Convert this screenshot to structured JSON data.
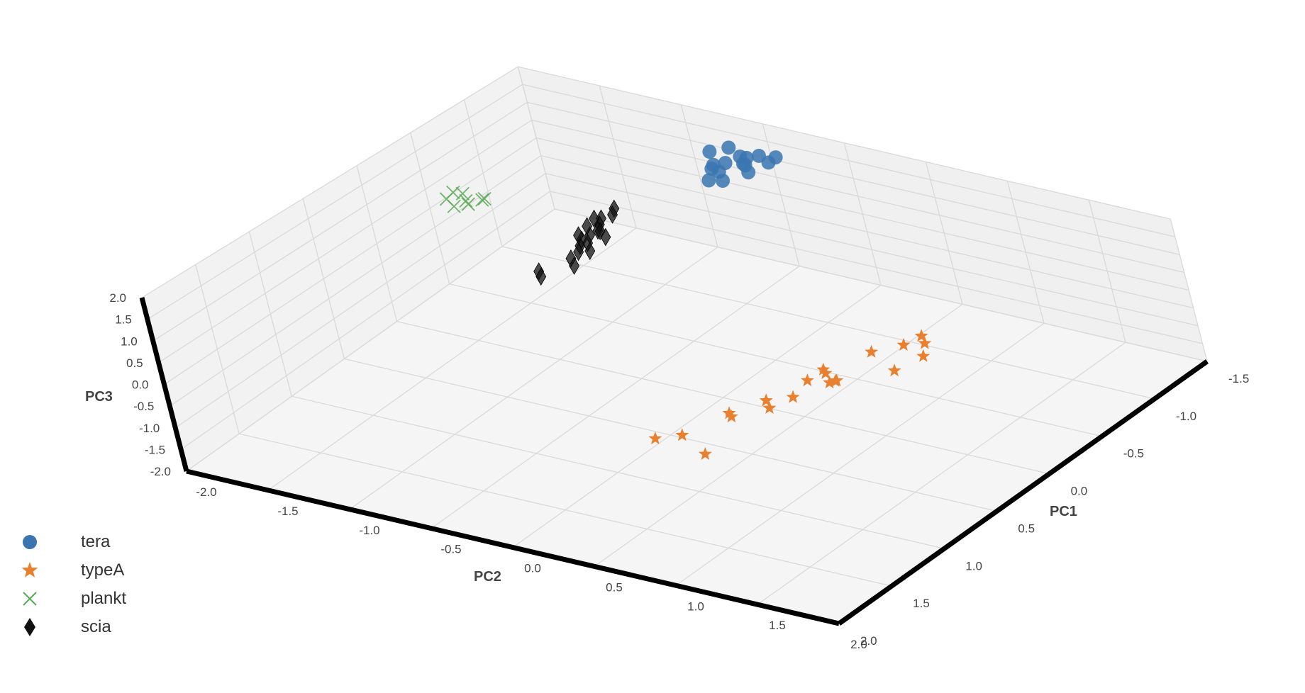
{
  "chart_data": {
    "type": "scatter",
    "projection": "3d",
    "grid": true,
    "legend_position": "bottom-left",
    "axes": {
      "x": {
        "label": "PC1",
        "range": [
          -1.5,
          2.0
        ],
        "ticks": [
          "-1.5",
          "-1.0",
          "-0.5",
          "0.0",
          "0.5",
          "1.0",
          "1.5",
          "2.0"
        ]
      },
      "y": {
        "label": "PC2",
        "range": [
          -2.0,
          2.0
        ],
        "ticks": [
          "-2.0",
          "-1.5",
          "-1.0",
          "-0.5",
          "0.0",
          "0.5",
          "1.0",
          "1.5",
          "2.0"
        ]
      },
      "z": {
        "label": "PC3",
        "range": [
          -2.0,
          2.0
        ],
        "ticks": [
          "-2.0",
          "-1.5",
          "-1.0",
          "-0.5",
          "0.0",
          "0.5",
          "1.0",
          "1.5",
          "2.0"
        ]
      }
    },
    "series": [
      {
        "name": "tera",
        "marker": "circle",
        "color": "#3a75b0",
        "points": [
          [
            -1.3,
            -0.6,
            1.6
          ],
          [
            -1.25,
            -0.5,
            1.55
          ],
          [
            -1.2,
            -0.45,
            1.5
          ],
          [
            -1.18,
            -0.55,
            1.45
          ],
          [
            -1.15,
            -0.4,
            1.6
          ],
          [
            -1.1,
            -0.35,
            1.55
          ],
          [
            -1.05,
            -0.5,
            1.5
          ],
          [
            -1.0,
            -0.45,
            1.4
          ],
          [
            -1.22,
            -0.3,
            1.65
          ],
          [
            -1.12,
            -0.6,
            1.35
          ],
          [
            -1.28,
            -0.4,
            1.62
          ],
          [
            -1.08,
            -0.55,
            1.58
          ],
          [
            -1.35,
            -0.35,
            1.5
          ],
          [
            -0.95,
            -0.5,
            1.45
          ],
          [
            -1.2,
            -0.65,
            1.62
          ],
          [
            -1.3,
            -0.5,
            1.42
          ]
        ]
      },
      {
        "name": "typeA",
        "marker": "star",
        "color": "#e88030",
        "points": [
          [
            -0.45,
            0.9,
            -0.6
          ],
          [
            -0.5,
            1.0,
            -0.55
          ],
          [
            -0.4,
            1.05,
            -0.65
          ],
          [
            -0.55,
            0.95,
            -0.5
          ],
          [
            -0.3,
            0.8,
            -0.6
          ],
          [
            -0.2,
            1.0,
            -0.7
          ],
          [
            0.0,
            0.7,
            -0.6
          ],
          [
            0.05,
            0.75,
            -0.55
          ],
          [
            0.1,
            0.8,
            -0.65
          ],
          [
            0.15,
            0.7,
            -0.6
          ],
          [
            0.1,
            0.85,
            -0.55
          ],
          [
            0.05,
            0.8,
            -0.7
          ],
          [
            0.3,
            0.7,
            -0.75
          ],
          [
            0.4,
            0.6,
            -0.75
          ],
          [
            0.45,
            0.65,
            -0.8
          ],
          [
            0.6,
            0.5,
            -0.8
          ],
          [
            0.65,
            0.55,
            -0.75
          ],
          [
            0.9,
            0.4,
            -0.9
          ],
          [
            1.0,
            0.3,
            -0.9
          ],
          [
            1.0,
            0.6,
            -1.0
          ]
        ]
      },
      {
        "name": "plankt",
        "marker": "x",
        "color": "#5aaa55",
        "points": [
          [
            -0.3,
            -1.6,
            1.15
          ],
          [
            -0.25,
            -1.55,
            1.1
          ],
          [
            -0.2,
            -1.5,
            1.15
          ],
          [
            -0.28,
            -1.45,
            1.2
          ],
          [
            -0.22,
            -1.65,
            1.1
          ],
          [
            -0.18,
            -1.58,
            1.05
          ],
          [
            -0.32,
            -1.5,
            1.05
          ],
          [
            -0.25,
            -1.62,
            1.25
          ]
        ]
      },
      {
        "name": "scia",
        "marker": "diamond",
        "color": "#111111",
        "points": [
          [
            -0.5,
            -0.8,
            1.2
          ],
          [
            -0.45,
            -0.78,
            1.15
          ],
          [
            -0.4,
            -0.82,
            1.1
          ],
          [
            -0.35,
            -0.8,
            1.05
          ],
          [
            -0.3,
            -0.78,
            1.0
          ],
          [
            -0.25,
            -0.8,
            0.95
          ],
          [
            -0.2,
            -0.82,
            0.9
          ],
          [
            -0.15,
            -0.8,
            0.85
          ],
          [
            -0.1,
            -0.78,
            0.8
          ],
          [
            -0.28,
            -0.75,
            1.05
          ],
          [
            -0.22,
            -0.85,
            0.95
          ],
          [
            -0.18,
            -0.77,
            0.9
          ],
          [
            -0.38,
            -0.85,
            1.1
          ],
          [
            -0.05,
            -0.8,
            0.7
          ],
          [
            -0.12,
            -0.72,
            0.85
          ],
          [
            -0.32,
            -0.86,
            1.0
          ],
          [
            0.0,
            -0.75,
            0.65
          ],
          [
            -0.25,
            -0.7,
            1.0
          ],
          [
            0.05,
            -0.95,
            0.4
          ],
          [
            0.08,
            -0.92,
            0.35
          ]
        ]
      }
    ],
    "legend": [
      "tera",
      "typeA",
      "plankt",
      "scia"
    ]
  }
}
